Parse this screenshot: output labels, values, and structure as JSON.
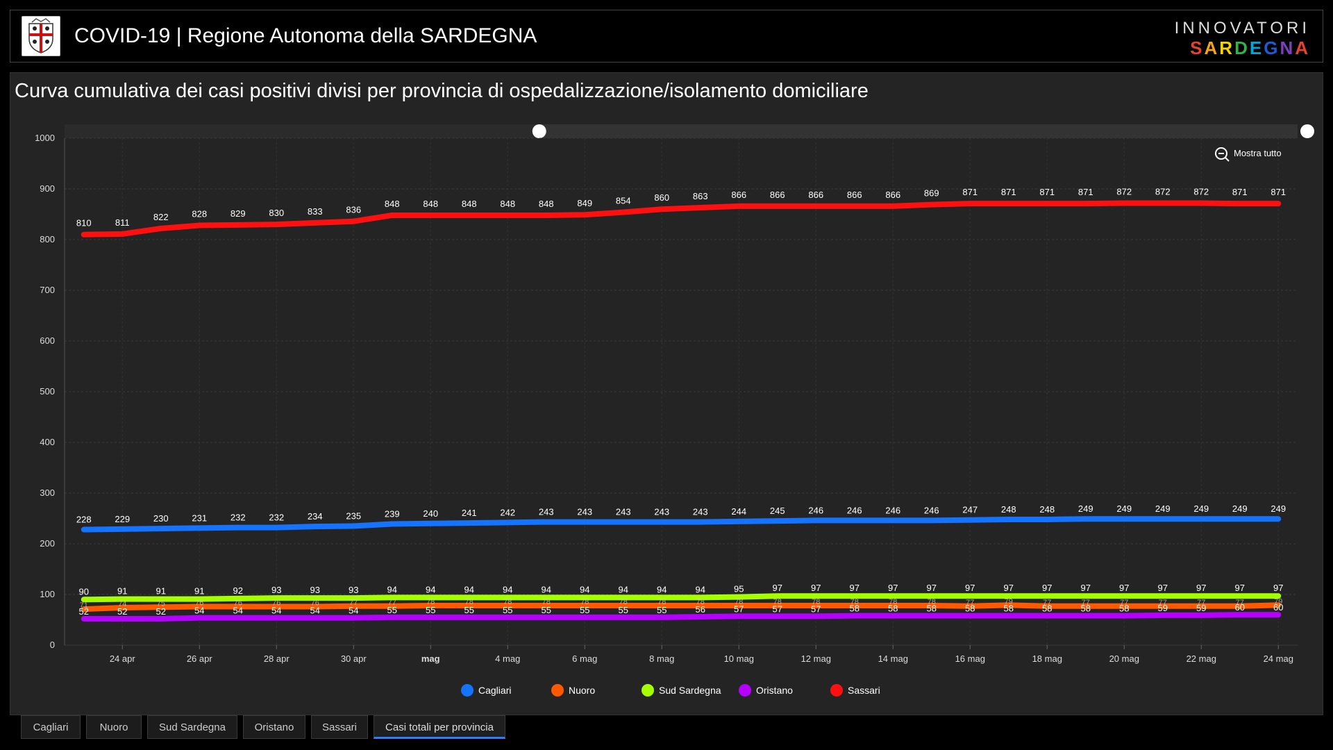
{
  "header": {
    "title": "COVID-19 | Regione Autonoma della SARDEGNA",
    "brand_top": "INNOVATORI",
    "brand_bottom": "SARDEGNA",
    "brand_colors": [
      "#e8412c",
      "#f7a21b",
      "#f4d400",
      "#2fb44a",
      "#00a6d6",
      "#1a5bd6",
      "#7b3fbf",
      "#e8412c"
    ]
  },
  "panel": {
    "title": "Curva cumulativa dei casi positivi divisi per provincia di ospedalizzazione/isolamento domiciliare"
  },
  "zoom_label": "Mostra tutto",
  "colors": {
    "background": "#242424",
    "grid": "#3a3a3a",
    "accent": "#2a7fff"
  },
  "chart_data": {
    "type": "line",
    "title": "Curva cumulativa dei casi positivi divisi per provincia di ospedalizzazione/isolamento domiciliare",
    "x": [
      "23 apr",
      "24 apr",
      "25 apr",
      "26 apr",
      "27 apr",
      "28 apr",
      "29 apr",
      "30 apr",
      "1 mag",
      "2 mag",
      "3 mag",
      "4 mag",
      "5 mag",
      "6 mag",
      "7 mag",
      "8 mag",
      "9 mag",
      "10 mag",
      "11 mag",
      "12 mag",
      "13 mag",
      "14 mag",
      "15 mag",
      "16 mag",
      "17 mag",
      "18 mag",
      "19 mag",
      "20 mag",
      "21 mag",
      "22 mag",
      "23 mag",
      "24 mag"
    ],
    "x_tick_labels": [
      "24 apr",
      "26 apr",
      "28 apr",
      "30 apr",
      "mag",
      "4 mag",
      "6 mag",
      "8 mag",
      "10 mag",
      "12 mag",
      "14 mag",
      "16 mag",
      "18 mag",
      "20 mag",
      "22 mag",
      "24 mag"
    ],
    "ylim": [
      0,
      1000
    ],
    "y_ticks": [
      0,
      100,
      200,
      300,
      400,
      500,
      600,
      700,
      800,
      900,
      1000
    ],
    "grid": true,
    "legend_position": "bottom",
    "series": [
      {
        "name": "Cagliari",
        "color": "#1473ff",
        "values": [
          228,
          229,
          230,
          231,
          232,
          232,
          234,
          235,
          239,
          240,
          241,
          242,
          243,
          243,
          243,
          243,
          243,
          244,
          245,
          246,
          246,
          246,
          246,
          247,
          248,
          248,
          249,
          249,
          249,
          249,
          249,
          249
        ]
      },
      {
        "name": "Nuoro",
        "color": "#ff5a00",
        "values": [
          71,
          74,
          75,
          76,
          76,
          76,
          76,
          77,
          77,
          78,
          78,
          78,
          78,
          78,
          78,
          78,
          78,
          78,
          78,
          78,
          78,
          78,
          78,
          77,
          79,
          77,
          77,
          77,
          77,
          77,
          77,
          79
        ]
      },
      {
        "name": "Sud Sardegna",
        "color": "#a6ff00",
        "values": [
          90,
          91,
          91,
          91,
          92,
          93,
          93,
          93,
          94,
          94,
          94,
          94,
          94,
          94,
          94,
          94,
          94,
          95,
          97,
          97,
          97,
          97,
          97,
          97,
          97,
          97,
          97,
          97,
          97,
          97,
          97,
          97
        ]
      },
      {
        "name": "Oristano",
        "color": "#b600ff",
        "values": [
          52,
          52,
          52,
          54,
          54,
          54,
          54,
          54,
          55,
          55,
          55,
          55,
          55,
          55,
          55,
          55,
          56,
          57,
          57,
          57,
          58,
          58,
          58,
          58,
          58,
          58,
          58,
          58,
          59,
          59,
          60,
          60
        ]
      },
      {
        "name": "Sassari",
        "color": "#ff1010",
        "values": [
          810,
          811,
          822,
          828,
          829,
          830,
          833,
          836,
          848,
          848,
          848,
          848,
          848,
          849,
          854,
          860,
          863,
          866,
          866,
          866,
          866,
          866,
          869,
          871,
          871,
          871,
          871,
          872,
          872,
          872,
          871,
          871
        ]
      }
    ]
  },
  "tabs": [
    {
      "label": "Cagliari"
    },
    {
      "label": "Nuoro"
    },
    {
      "label": "Sud Sardegna"
    },
    {
      "label": "Oristano"
    },
    {
      "label": "Sassari"
    },
    {
      "label": "Casi totali per provincia"
    }
  ]
}
